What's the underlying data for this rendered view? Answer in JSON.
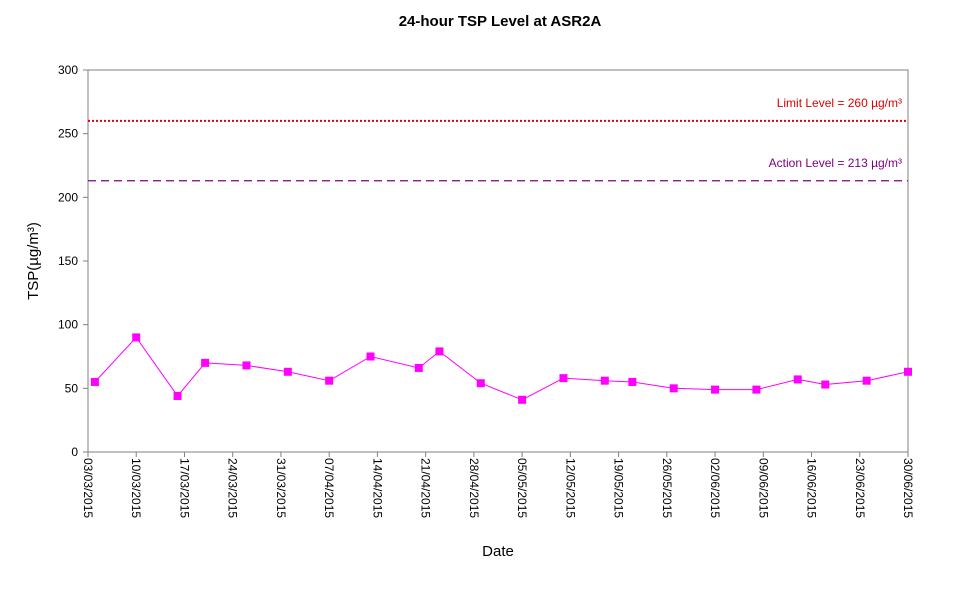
{
  "chart_data": {
    "type": "line",
    "title": "24-hour TSP Level at ASR2A",
    "xlabel": "Date",
    "ylabel": "TSP(µg/m³)",
    "ylim": [
      0,
      300
    ],
    "yticks": [
      0,
      50,
      100,
      150,
      200,
      250,
      300
    ],
    "xlim": [
      "2015-03-03",
      "2015-06-30"
    ],
    "xtick_labels": [
      "03/03/2015",
      "10/03/2015",
      "17/03/2015",
      "24/03/2015",
      "31/03/2015",
      "07/04/2015",
      "14/04/2015",
      "21/04/2015",
      "28/04/2015",
      "05/05/2015",
      "12/05/2015",
      "19/05/2015",
      "26/05/2015",
      "02/06/2015",
      "09/06/2015",
      "16/06/2015",
      "23/06/2015",
      "30/06/2015"
    ],
    "grid": false,
    "legend": "none",
    "series": [
      {
        "color": "#ff00ff",
        "marker": "square",
        "x": [
          "2015-03-04",
          "2015-03-10",
          "2015-03-16",
          "2015-03-20",
          "2015-03-26",
          "2015-04-01",
          "2015-04-07",
          "2015-04-13",
          "2015-04-20",
          "2015-04-23",
          "2015-04-29",
          "2015-05-05",
          "2015-05-11",
          "2015-05-17",
          "2015-05-21",
          "2015-05-27",
          "2015-06-02",
          "2015-06-08",
          "2015-06-14",
          "2015-06-18",
          "2015-06-24",
          "2015-06-30"
        ],
        "values": [
          55,
          90,
          44,
          70,
          68,
          63,
          56,
          75,
          66,
          79,
          54,
          41,
          58,
          56,
          55,
          50,
          49,
          49,
          57,
          53,
          56,
          63
        ]
      }
    ],
    "reference_lines": [
      {
        "label": "Limit Level  = 260 µg/m³",
        "value": 260,
        "color": "#e00000",
        "style": "dotted"
      },
      {
        "label": "Action Level  = 213 µg/m³",
        "value": 213,
        "color": "#800080",
        "style": "dashed"
      }
    ]
  }
}
